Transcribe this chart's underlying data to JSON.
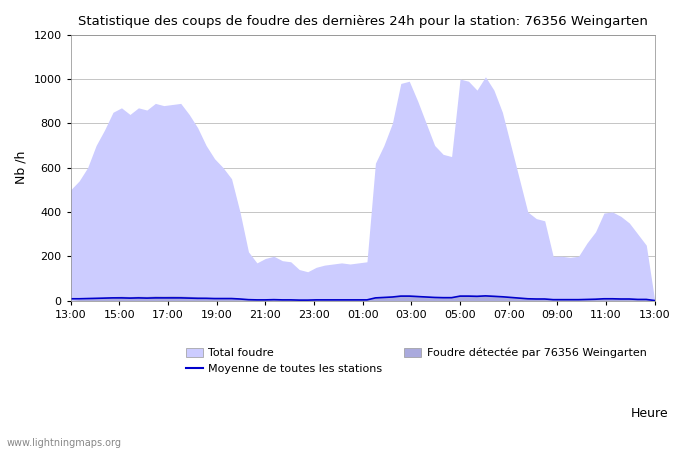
{
  "title": "Statistique des coups de foudre des dernières 24h pour la station: 76356 Weingarten",
  "xlabel": "Heure",
  "ylabel": "Nb /h",
  "ylim": [
    0,
    1200
  ],
  "yticks": [
    0,
    200,
    400,
    600,
    800,
    1000,
    1200
  ],
  "xtick_labels": [
    "13:00",
    "15:00",
    "17:00",
    "19:00",
    "21:00",
    "23:00",
    "01:00",
    "03:00",
    "05:00",
    "07:00",
    "09:00",
    "11:00",
    "13:00"
  ],
  "watermark": "www.lightningmaps.org",
  "fill_total_color": "#ccccff",
  "fill_detected_color": "#aaaadd",
  "mean_line_color": "#0000cc",
  "background_color": "#ffffff",
  "total_foudre": [
    500,
    540,
    600,
    700,
    770,
    850,
    870,
    840,
    870,
    860,
    890,
    880,
    885,
    890,
    840,
    780,
    700,
    640,
    600,
    550,
    400,
    220,
    170,
    190,
    200,
    180,
    175,
    140,
    130,
    150,
    160,
    165,
    170,
    165,
    170,
    175,
    620,
    700,
    800,
    980,
    990,
    900,
    800,
    700,
    660,
    650,
    1000,
    990,
    950,
    1010,
    950,
    850,
    700,
    550,
    400,
    370,
    360,
    200,
    200,
    195,
    200,
    260,
    310,
    395,
    400,
    380,
    350,
    300,
    250,
    0
  ],
  "detected_foudre": [
    0,
    5,
    8,
    10,
    15,
    18,
    20,
    18,
    20,
    19,
    22,
    21,
    22,
    21,
    19,
    17,
    15,
    13,
    12,
    11,
    8,
    5,
    4,
    4,
    5,
    4,
    4,
    3,
    3,
    3,
    4,
    4,
    4,
    4,
    4,
    4,
    15,
    17,
    20,
    25,
    25,
    23,
    20,
    17,
    16,
    16,
    25,
    25,
    24,
    26,
    24,
    21,
    18,
    14,
    10,
    9,
    9,
    5,
    5,
    5,
    5,
    6,
    8,
    10,
    10,
    9,
    9,
    6,
    6,
    0
  ],
  "mean_line": [
    8,
    8,
    9,
    10,
    11,
    12,
    12,
    11,
    12,
    11,
    12,
    12,
    12,
    12,
    11,
    10,
    10,
    9,
    9,
    9,
    7,
    4,
    3,
    3,
    4,
    3,
    3,
    2,
    2,
    3,
    3,
    3,
    3,
    3,
    3,
    3,
    12,
    14,
    16,
    20,
    20,
    18,
    16,
    14,
    13,
    13,
    20,
    20,
    19,
    21,
    19,
    17,
    14,
    11,
    8,
    7,
    7,
    4,
    4,
    4,
    4,
    5,
    6,
    8,
    8,
    7,
    7,
    5,
    5,
    0
  ]
}
